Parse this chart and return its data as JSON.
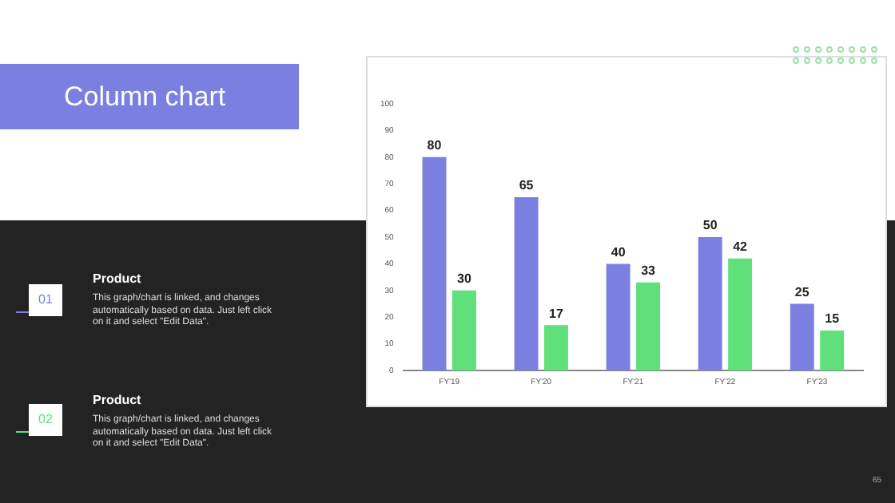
{
  "chart_data": {
    "type": "bar",
    "title": "Column chart",
    "categories": [
      "FY'19",
      "FY'20",
      "FY'21",
      "FY'22",
      "FY'23"
    ],
    "series": [
      {
        "color": "#7b7fe0",
        "values": [
          80,
          65,
          40,
          50,
          25
        ]
      },
      {
        "color": "#5fe07a",
        "values": [
          30,
          17,
          33,
          42,
          15
        ]
      }
    ],
    "ylim": [
      0,
      100
    ],
    "yticks": [
      0,
      10,
      20,
      30,
      40,
      50,
      60,
      70,
      80,
      90,
      100
    ],
    "grid": false,
    "legend": false,
    "data_labels": true,
    "annotations": [
      "01",
      "Product",
      "This graph/chart is linked, and changes automatically based on data. Just left click on it and select \"Edit Data\".",
      "02",
      "Product",
      "This graph/chart is linked, and changes automatically based on data. Just left click on it and select \"Edit Data\".",
      "65"
    ]
  }
}
